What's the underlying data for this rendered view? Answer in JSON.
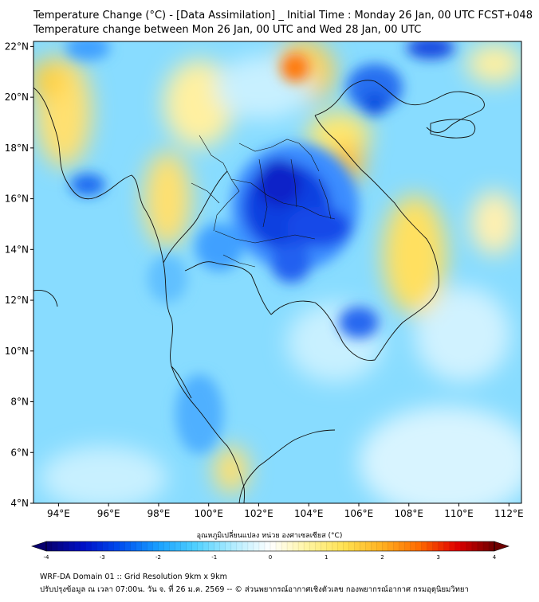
{
  "title": {
    "line1": "Temperature Change (°C) - [Data Assimilation] _ Initial Time : Monday 26 Jan, 00 UTC FCST+048",
    "line2": "Temperature change between Mon 26 Jan, 00 UTC and Wed 28 Jan, 00 UTC"
  },
  "axes": {
    "lat_labels": [
      "22°N",
      "20°N",
      "18°N",
      "16°N",
      "14°N",
      "12°N",
      "10°N",
      "8°N",
      "6°N",
      "4°N"
    ],
    "lon_labels": [
      "94°E",
      "96°E",
      "98°E",
      "100°E",
      "102°E",
      "104°E",
      "106°E",
      "108°E",
      "110°E",
      "112°E"
    ],
    "lat_range": [
      4,
      22.2
    ],
    "lon_range": [
      93,
      112.5
    ]
  },
  "colorbar": {
    "title": "อุณหภูมิเปลี่ยนแปลง หน่วย องศาเซลเซียส (°C)",
    "ticks": [
      "-4",
      "-3",
      "-2",
      "-1",
      "0",
      "1",
      "2",
      "3",
      "4"
    ],
    "range": [
      -4,
      4
    ],
    "colors": [
      "#08006e",
      "#0010c8",
      "#0050f0",
      "#1aa0ff",
      "#4fd0ff",
      "#b0ecff",
      "#ffffff",
      "#fff4a0",
      "#ffe050",
      "#ffb020",
      "#ff6a00",
      "#e00000",
      "#6e0000"
    ]
  },
  "footer": {
    "line1": "WRF-DA Domain 01 :: Grid Resolution 9km x 9km",
    "line2": "ปรับปรุงข้อมูล ณ เวลา 07:00น. วัน จ. ที่ 26 ม.ค. 2569 -- © ส่วนพยากรณ์อากาศเชิงตัวเลข กองพยากรณ์อากาศ กรมอุตุนิยมวิทยา"
  }
}
